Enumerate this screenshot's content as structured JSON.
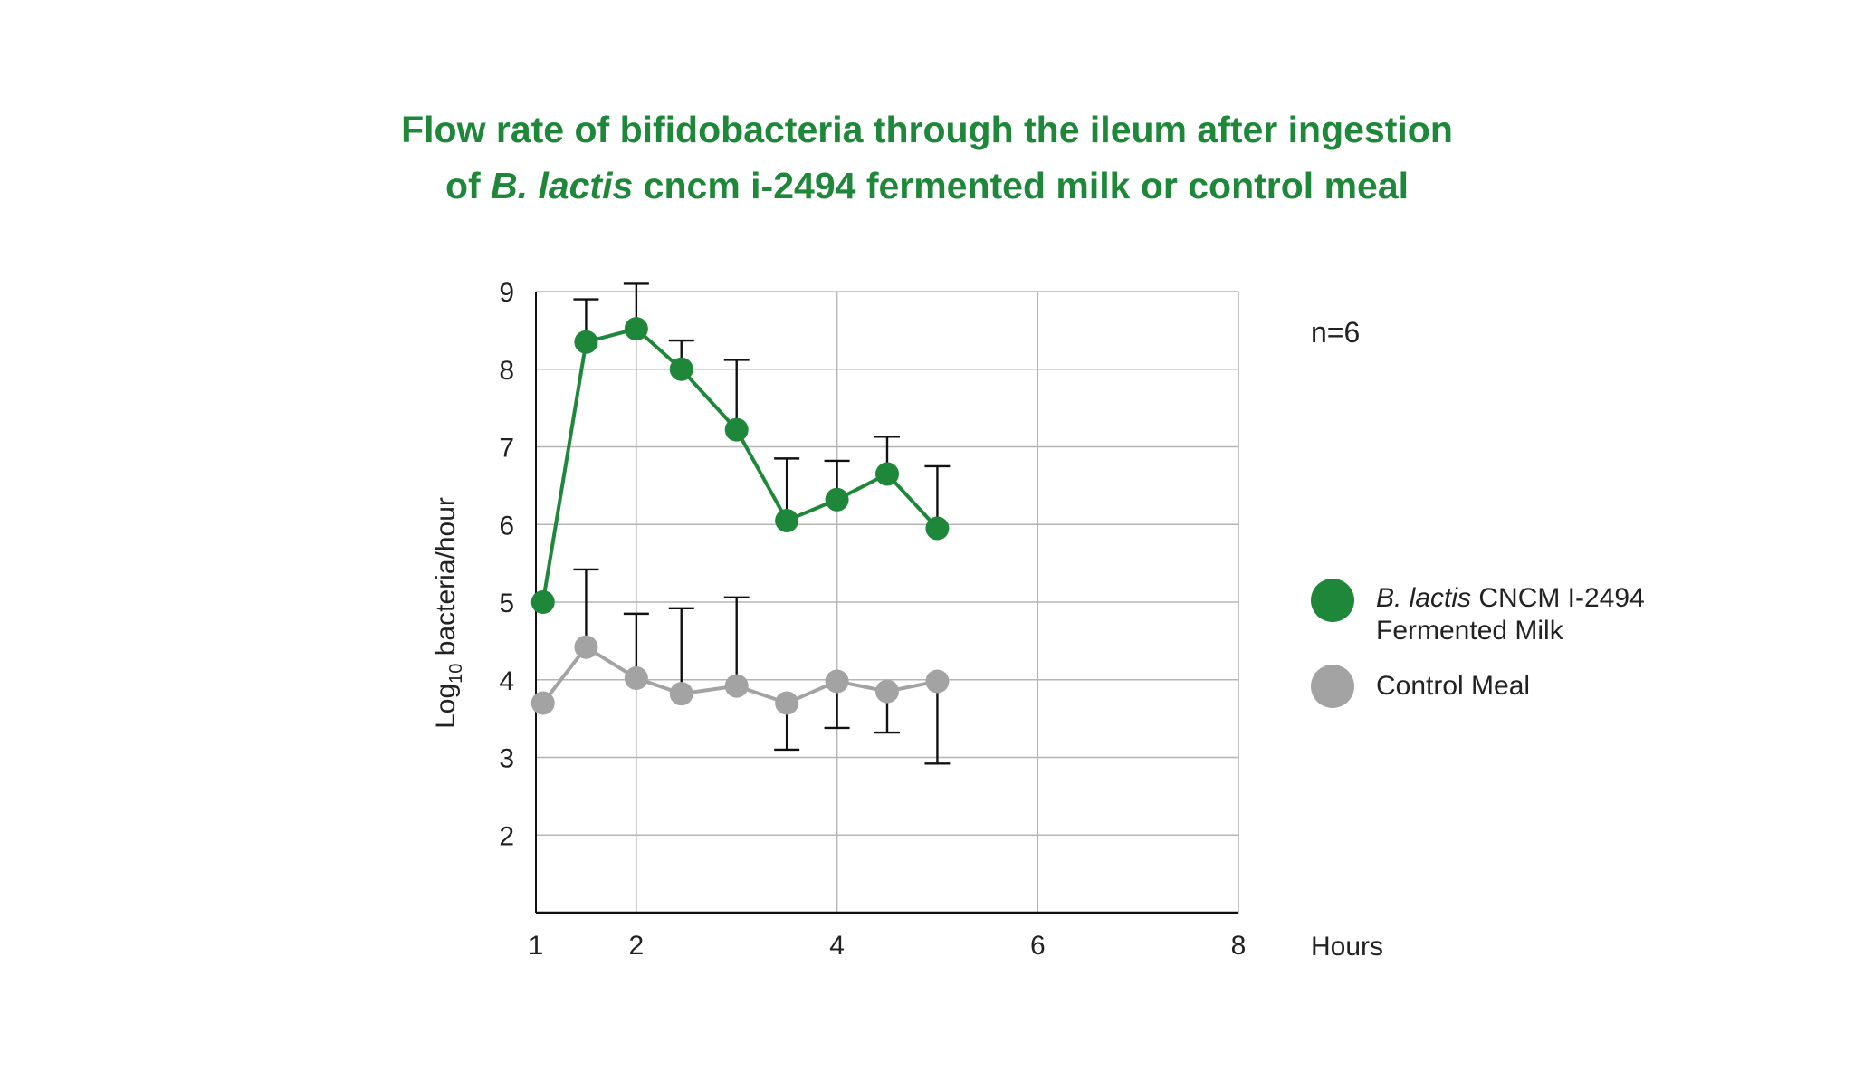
{
  "title": {
    "line1": "Flow rate of bifidobacteria through the ileum after ingestion",
    "line2_prefix": "of ",
    "line2_italic": "B. lactis",
    "line2_suffix": " cncm i-2494 fermented milk or control meal"
  },
  "colors": {
    "green": "#1e8739",
    "gray": "#a3a3a3",
    "grid": "#b5b5b5",
    "axis": "#111111",
    "error": "#111111"
  },
  "chart_data": {
    "type": "line",
    "title": "Flow rate of bifidobacteria through the ileum after ingestion of B. lactis cncm i-2494 fermented milk or control meal",
    "xlabel": "Hours",
    "ylabel": {
      "prefix": "Log",
      "subscript": "10",
      "suffix": " bacteria/hour"
    },
    "xlim": [
      1,
      8
    ],
    "ylim": [
      1,
      9
    ],
    "xticks": [
      1,
      2,
      4,
      6,
      8
    ],
    "xgrid": [
      1,
      2,
      4,
      6,
      8
    ],
    "yticks": [
      2,
      3,
      4,
      5,
      6,
      7,
      8,
      9
    ],
    "annotation": "n=6",
    "x": [
      1.07,
      1.5,
      2.0,
      2.45,
      3.0,
      3.5,
      4.0,
      4.5,
      5.0
    ],
    "series": [
      {
        "name": "B. lactis CNCM I-2494 Fermented Milk",
        "legend_italic": "B. lactis",
        "legend_rest_line1": " CNCM I-2494",
        "legend_line2": "Fermented Milk",
        "color_key": "green",
        "values": [
          5.0,
          8.35,
          8.52,
          8.0,
          7.22,
          6.05,
          6.32,
          6.65,
          5.95
        ],
        "error_upper": [
          null,
          8.9,
          9.1,
          8.37,
          8.12,
          6.85,
          6.82,
          7.13,
          6.75
        ],
        "error_lower": [
          null,
          null,
          null,
          null,
          null,
          null,
          null,
          null,
          null
        ]
      },
      {
        "name": "Control Meal",
        "legend_label": "Control Meal",
        "color_key": "gray",
        "values": [
          3.7,
          4.42,
          4.02,
          3.82,
          3.92,
          3.7,
          3.98,
          3.85,
          3.98
        ],
        "error_upper": [
          null,
          5.42,
          4.85,
          4.92,
          5.06,
          null,
          null,
          null,
          null
        ],
        "error_lower": [
          null,
          null,
          null,
          null,
          null,
          3.1,
          3.38,
          3.32,
          2.92
        ]
      }
    ]
  }
}
